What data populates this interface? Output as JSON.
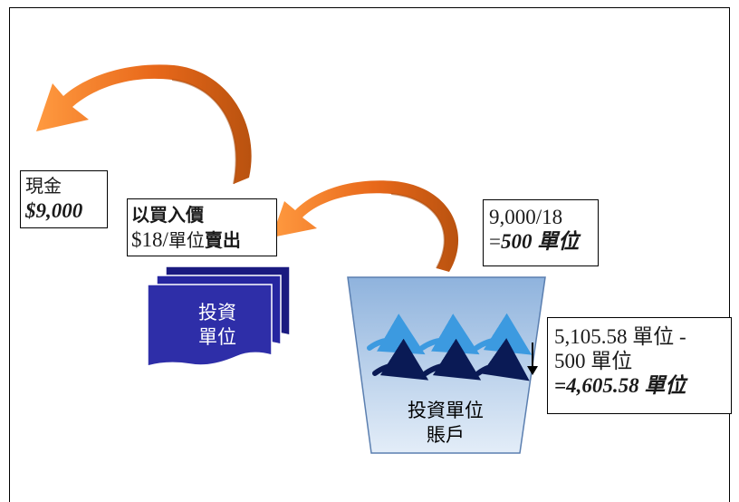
{
  "cash_box": {
    "label": "現金",
    "amount": "$9,000"
  },
  "sell_box": {
    "line1": "以買入價",
    "line2_price": "$18/",
    "line2_unit": "單位",
    "line2_sell": "賣出"
  },
  "calc_box": {
    "line1": "9,000/18",
    "line2_prefix": "=",
    "line2_value": "500 單位"
  },
  "remain_box": {
    "line1": "5,105.58 單位 -",
    "line2": "500 單位",
    "line3": "=4,605.58 單位"
  },
  "documents": {
    "label_line1": "投資",
    "label_line2": "單位"
  },
  "funnel": {
    "label_line1": "投資單位",
    "label_line2": "賬戶"
  },
  "colors": {
    "arrow_orange": "#f07a1e",
    "arrow_dark_orange": "#c4560c",
    "doc_blue": "#2e2ea8",
    "doc_dark": "#1a1a80",
    "funnel_top": "#8fb3dd",
    "funnel_bottom": "#dfeaf7",
    "flow_light_blue": "#3c9ae0",
    "flow_navy": "#0a1a55"
  },
  "icons": [
    "curved-arrow-icon",
    "document-stack-icon",
    "funnel-icon",
    "down-arrow-icon"
  ]
}
